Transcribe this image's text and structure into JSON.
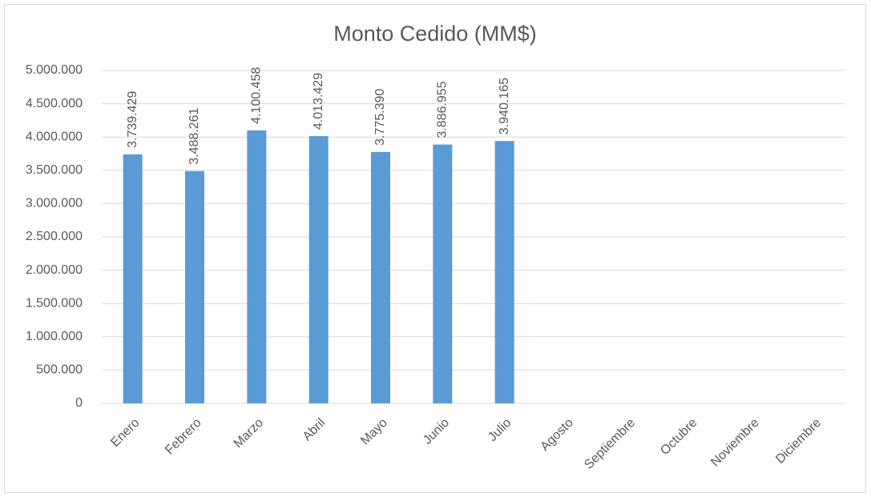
{
  "chart_data": {
    "type": "bar",
    "title": "Monto Cedido (MM$)",
    "categories": [
      "Enero",
      "Febrero",
      "Marzo",
      "Abril",
      "Mayo",
      "Junio",
      "Julio",
      "Agosto",
      "Septiembre",
      "Octubre",
      "Noviembre",
      "Diciembre"
    ],
    "values": [
      3739429,
      3488261,
      4100458,
      4013429,
      3775390,
      3886955,
      3940165,
      null,
      null,
      null,
      null,
      null
    ],
    "value_labels": [
      "3.739.429",
      "3.488.261",
      "4.100.458",
      "4.013.429",
      "3.775.390",
      "3.886.955",
      "3.940.165",
      null,
      null,
      null,
      null,
      null
    ],
    "color": "#5b9bd5",
    "ylim": [
      0,
      5000000
    ],
    "yticks": [
      0,
      {
        "value": 500000,
        "label": "500.000"
      },
      {
        "value": 1000000,
        "label": "1.000.000"
      },
      {
        "value": 1500000,
        "label": "1.500.000"
      },
      {
        "value": 2000000,
        "label": "2.000.000"
      },
      {
        "value": 2500000,
        "label": "2.500.000"
      },
      {
        "value": 3000000,
        "label": "3.000.000"
      },
      {
        "value": 3500000,
        "label": "3.500.000"
      },
      {
        "value": 4000000,
        "label": "4.000.000"
      },
      {
        "value": 4500000,
        "label": "4.500.000"
      },
      {
        "value": 5000000,
        "label": "5.000.000"
      }
    ],
    "grid": true
  }
}
